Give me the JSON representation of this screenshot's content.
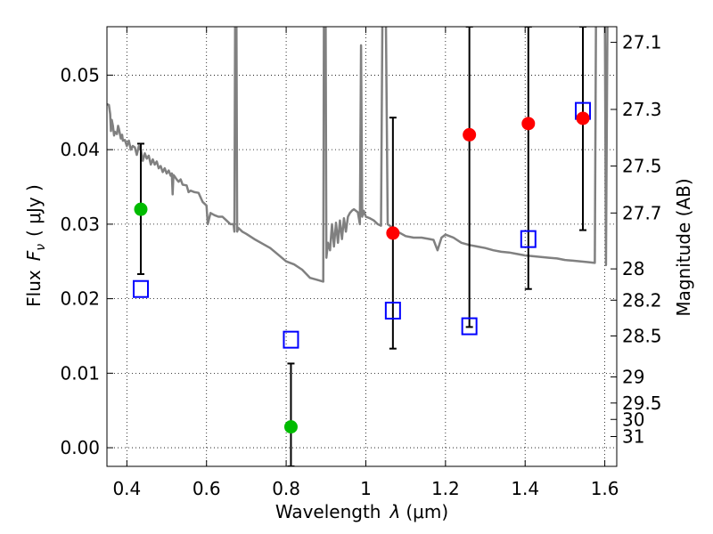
{
  "chart_data": {
    "type": "scatter",
    "xlabel_text": "Wavelength",
    "xlabel_symbol": "λ",
    "xlabel_unit": "(μm)",
    "ylabel_text": "Flux",
    "ylabel_symbol": "F",
    "ylabel_sub": "ν",
    "ylabel_unit": "( μJy )",
    "y2label": "Magnitude (AB)",
    "xlim": [
      0.35,
      1.63
    ],
    "ylim": [
      -0.0025,
      0.0565
    ],
    "grid": true,
    "x_ticks": [
      {
        "value": 0.4,
        "label": "0.4"
      },
      {
        "value": 0.6,
        "label": "0.6"
      },
      {
        "value": 0.8,
        "label": "0.8"
      },
      {
        "value": 1.0,
        "label": "1"
      },
      {
        "value": 1.2,
        "label": "1.2"
      },
      {
        "value": 1.4,
        "label": "1.4"
      },
      {
        "value": 1.6,
        "label": "1.6"
      }
    ],
    "y_ticks": [
      {
        "value": 0.0,
        "label": "0.00"
      },
      {
        "value": 0.01,
        "label": "0.01"
      },
      {
        "value": 0.02,
        "label": "0.02"
      },
      {
        "value": 0.03,
        "label": "0.03"
      },
      {
        "value": 0.04,
        "label": "0.04"
      },
      {
        "value": 0.05,
        "label": "0.05"
      }
    ],
    "y2_ticks": [
      {
        "flux": 0.0544,
        "label": "27.1"
      },
      {
        "flux": 0.0454,
        "label": "27.3"
      },
      {
        "flux": 0.0378,
        "label": "27.5"
      },
      {
        "flux": 0.0315,
        "label": "27.7"
      },
      {
        "flux": 0.024,
        "label": "28"
      },
      {
        "flux": 0.0198,
        "label": "28.2"
      },
      {
        "flux": 0.015,
        "label": "28.5"
      },
      {
        "flux": 0.0095,
        "label": "29"
      },
      {
        "flux": 0.006,
        "label": "29.5"
      },
      {
        "flux": 0.0038,
        "label": "30"
      },
      {
        "flux": 0.0015,
        "label": "31"
      }
    ],
    "model_spectrum": {
      "color": "#808080",
      "points": [
        [
          0.35,
          0.0461
        ],
        [
          0.355,
          0.046
        ],
        [
          0.358,
          0.0448
        ],
        [
          0.36,
          0.0425
        ],
        [
          0.362,
          0.044
        ],
        [
          0.365,
          0.0432
        ],
        [
          0.368,
          0.0419
        ],
        [
          0.37,
          0.0424
        ],
        [
          0.375,
          0.0421
        ],
        [
          0.378,
          0.0432
        ],
        [
          0.38,
          0.0428
        ],
        [
          0.385,
          0.0415
        ],
        [
          0.388,
          0.042
        ],
        [
          0.39,
          0.0412
        ],
        [
          0.395,
          0.0413
        ],
        [
          0.4,
          0.0405
        ],
        [
          0.405,
          0.0412
        ],
        [
          0.41,
          0.04
        ],
        [
          0.415,
          0.0405
        ],
        [
          0.42,
          0.0403
        ],
        [
          0.425,
          0.0393
        ],
        [
          0.43,
          0.0405
        ],
        [
          0.435,
          0.04
        ],
        [
          0.44,
          0.0385
        ],
        [
          0.445,
          0.0395
        ],
        [
          0.45,
          0.0388
        ],
        [
          0.455,
          0.0392
        ],
        [
          0.46,
          0.038
        ],
        [
          0.465,
          0.0387
        ],
        [
          0.47,
          0.038
        ],
        [
          0.475,
          0.0384
        ],
        [
          0.48,
          0.0375
        ],
        [
          0.485,
          0.0378
        ],
        [
          0.49,
          0.037
        ],
        [
          0.495,
          0.0375
        ],
        [
          0.5,
          0.0368
        ],
        [
          0.505,
          0.0372
        ],
        [
          0.51,
          0.0365
        ],
        [
          0.513,
          0.0368
        ],
        [
          0.515,
          0.034
        ],
        [
          0.517,
          0.0366
        ],
        [
          0.52,
          0.0364
        ],
        [
          0.525,
          0.036
        ],
        [
          0.53,
          0.0357
        ],
        [
          0.535,
          0.036
        ],
        [
          0.54,
          0.0353
        ],
        [
          0.55,
          0.0352
        ],
        [
          0.555,
          0.0343
        ],
        [
          0.56,
          0.0345
        ],
        [
          0.57,
          0.0343
        ],
        [
          0.58,
          0.0342
        ],
        [
          0.59,
          0.033
        ],
        [
          0.6,
          0.0325
        ],
        [
          0.603,
          0.03
        ],
        [
          0.61,
          0.0315
        ],
        [
          0.62,
          0.0312
        ],
        [
          0.63,
          0.031
        ],
        [
          0.64,
          0.031
        ],
        [
          0.65,
          0.0305
        ],
        [
          0.66,
          0.03
        ],
        [
          0.668,
          0.03
        ],
        [
          0.67,
          0.029
        ],
        [
          0.672,
          0.06
        ],
        [
          0.675,
          0.06
        ],
        [
          0.677,
          0.029
        ],
        [
          0.68,
          0.0295
        ],
        [
          0.69,
          0.029
        ],
        [
          0.7,
          0.0287
        ],
        [
          0.72,
          0.028
        ],
        [
          0.74,
          0.0274
        ],
        [
          0.76,
          0.0268
        ],
        [
          0.78,
          0.0259
        ],
        [
          0.8,
          0.025
        ],
        [
          0.82,
          0.0246
        ],
        [
          0.84,
          0.0239
        ],
        [
          0.86,
          0.0228
        ],
        [
          0.88,
          0.0225
        ],
        [
          0.893,
          0.0223
        ],
        [
          0.895,
          0.06
        ],
        [
          0.899,
          0.06
        ],
        [
          0.901,
          0.0255
        ],
        [
          0.905,
          0.0275
        ],
        [
          0.91,
          0.0265
        ],
        [
          0.915,
          0.03
        ],
        [
          0.92,
          0.027
        ],
        [
          0.925,
          0.0302
        ],
        [
          0.93,
          0.0275
        ],
        [
          0.935,
          0.0305
        ],
        [
          0.94,
          0.028
        ],
        [
          0.945,
          0.0308
        ],
        [
          0.95,
          0.029
        ],
        [
          0.955,
          0.031
        ],
        [
          0.96,
          0.0315
        ],
        [
          0.965,
          0.0318
        ],
        [
          0.97,
          0.032
        ],
        [
          0.98,
          0.0316
        ],
        [
          0.985,
          0.03
        ],
        [
          0.988,
          0.054
        ],
        [
          0.991,
          0.031
        ],
        [
          0.995,
          0.0318
        ],
        [
          1.0,
          0.031
        ],
        [
          1.01,
          0.0308
        ],
        [
          1.02,
          0.0305
        ],
        [
          1.03,
          0.03
        ],
        [
          1.038,
          0.0298
        ],
        [
          1.042,
          0.06
        ],
        [
          1.05,
          0.06
        ],
        [
          1.055,
          0.03
        ],
        [
          1.06,
          0.0298
        ],
        [
          1.08,
          0.029
        ],
        [
          1.1,
          0.0284
        ],
        [
          1.12,
          0.0282
        ],
        [
          1.14,
          0.0282
        ],
        [
          1.16,
          0.028
        ],
        [
          1.17,
          0.0279
        ],
        [
          1.18,
          0.0265
        ],
        [
          1.19,
          0.0282
        ],
        [
          1.2,
          0.0286
        ],
        [
          1.22,
          0.0282
        ],
        [
          1.24,
          0.0275
        ],
        [
          1.26,
          0.0272
        ],
        [
          1.28,
          0.027
        ],
        [
          1.3,
          0.0268
        ],
        [
          1.32,
          0.0265
        ],
        [
          1.34,
          0.0263
        ],
        [
          1.36,
          0.0262
        ],
        [
          1.38,
          0.026
        ],
        [
          1.4,
          0.0258
        ],
        [
          1.42,
          0.0257
        ],
        [
          1.44,
          0.0256
        ],
        [
          1.46,
          0.0255
        ],
        [
          1.48,
          0.0254
        ],
        [
          1.5,
          0.0252
        ],
        [
          1.52,
          0.0251
        ],
        [
          1.54,
          0.025
        ],
        [
          1.56,
          0.0249
        ],
        [
          1.575,
          0.0248
        ],
        [
          1.578,
          0.06
        ],
        [
          1.585,
          0.06
        ],
        [
          1.595,
          0.06
        ],
        [
          1.6,
          0.06
        ],
        [
          1.603,
          0.0245
        ],
        [
          1.607,
          0.06
        ],
        [
          1.62,
          0.06
        ]
      ]
    },
    "detections_green": {
      "color": "#00bb00",
      "points": [
        {
          "x": 0.435,
          "y": 0.032
        },
        {
          "x": 0.812,
          "y": 0.0028
        }
      ]
    },
    "detections_red": {
      "color": "#ff0000",
      "points": [
        {
          "x": 1.068,
          "y": 0.0288
        },
        {
          "x": 1.26,
          "y": 0.042
        },
        {
          "x": 1.408,
          "y": 0.0435
        },
        {
          "x": 1.545,
          "y": 0.0442
        }
      ]
    },
    "model_photometry_blue": {
      "color": "#0000ff",
      "points": [
        {
          "x": 0.435,
          "y": 0.0213
        },
        {
          "x": 0.812,
          "y": 0.0145
        },
        {
          "x": 1.068,
          "y": 0.0184
        },
        {
          "x": 1.26,
          "y": 0.0163
        },
        {
          "x": 1.408,
          "y": 0.028
        },
        {
          "x": 1.545,
          "y": 0.0452
        }
      ]
    },
    "error_bars": [
      {
        "x": 0.435,
        "low": 0.0233,
        "high": 0.0408
      },
      {
        "x": 0.812,
        "low": -0.0025,
        "high": 0.0113
      },
      {
        "x": 1.068,
        "low": 0.0133,
        "high": 0.0443
      },
      {
        "x": 1.26,
        "low": 0.0162,
        "high": 0.0565
      },
      {
        "x": 1.408,
        "low": 0.0213,
        "high": 0.0565
      },
      {
        "x": 1.545,
        "low": 0.0292,
        "high": 0.0565
      }
    ]
  }
}
